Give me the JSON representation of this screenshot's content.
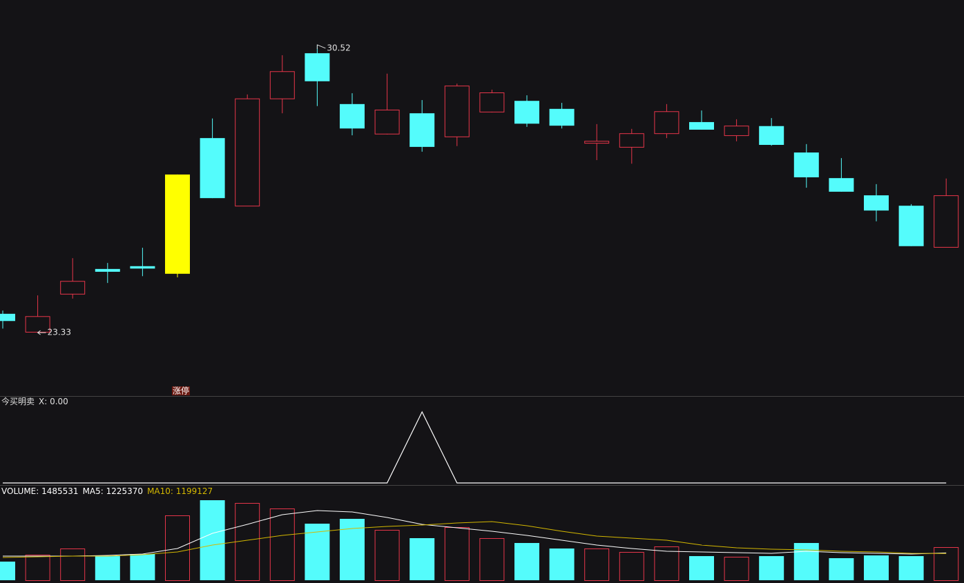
{
  "chart_data": [
    {
      "type": "candlestick",
      "open": [
        23.8,
        23.35,
        24.3,
        24.92,
        24.99,
        24.8,
        28.19,
        26.5,
        29.18,
        30.31,
        29.04,
        28.3,
        28.81,
        28.23,
        28.85,
        29.12,
        28.92,
        28.07,
        27.97,
        28.31,
        28.59,
        28.26,
        28.49,
        27.83,
        27.19,
        26.76,
        26.5,
        25.47
      ],
      "high": [
        23.88,
        24.26,
        25.19,
        25.07,
        25.45,
        27.28,
        28.68,
        29.28,
        30.26,
        30.52,
        29.31,
        29.8,
        29.14,
        29.55,
        29.4,
        29.26,
        29.07,
        28.54,
        28.42,
        29.04,
        28.88,
        28.66,
        28.69,
        28.04,
        27.69,
        27.04,
        26.54,
        27.18
      ],
      "low": [
        23.43,
        23.33,
        24.18,
        24.57,
        24.74,
        24.71,
        26.69,
        26.5,
        28.81,
        28.99,
        28.26,
        28.28,
        27.85,
        27.99,
        28.83,
        28.47,
        28.43,
        27.64,
        27.55,
        28.19,
        28.4,
        28.11,
        28.0,
        26.95,
        26.85,
        26.11,
        25.49,
        25.47
      ],
      "close": [
        23.62,
        23.74,
        24.62,
        24.85,
        24.93,
        27.28,
        26.69,
        29.18,
        29.86,
        29.61,
        28.43,
        28.9,
        27.97,
        29.5,
        29.33,
        28.55,
        28.5,
        28.12,
        28.31,
        28.86,
        28.4,
        28.5,
        28.02,
        27.21,
        26.85,
        26.38,
        25.49,
        26.76
      ],
      "up_color": "#e8364a",
      "down_color": "#54fcfc",
      "highlight": {
        "index": 5,
        "color": "#ffff00",
        "label": "涨停"
      },
      "annotations": [
        30.52,
        23.33
      ],
      "ylim": [
        21.78,
        31.64
      ]
    },
    {
      "type": "line",
      "title": "今买明卖",
      "legend": "X: 0.00",
      "color": "#ffffff",
      "values": [
        0,
        0,
        0,
        0,
        0,
        0,
        0,
        0,
        0,
        0,
        0,
        0,
        1,
        0,
        0,
        0,
        0,
        0,
        0,
        0,
        0,
        0,
        0,
        0,
        0,
        0,
        0,
        0
      ],
      "ylim": [
        0,
        1
      ]
    },
    {
      "type": "bar",
      "values": [
        836000,
        1145000,
        1424000,
        1083000,
        1176000,
        2909000,
        3590000,
        3466000,
        3219000,
        2538000,
        2754000,
        2259000,
        1888000,
        2383000,
        1888000,
        1671000,
        1424000,
        1424000,
        1269000,
        1516000,
        1083000,
        1052000,
        1083000,
        1671000,
        990000,
        1114000,
        1083000,
        1485531
      ],
      "legend": [
        {
          "text": "VOLUME: 1485531",
          "color": "#ffffff"
        },
        {
          "text": "MA5: 1225370",
          "color": "#ffffff"
        },
        {
          "text": "MA10: 1199127",
          "color": "#d4b800"
        }
      ],
      "lines": [
        {
          "color": "#ffffff",
          "values": [
            1083000,
            1083000,
            1083000,
            1114000,
            1176000,
            1424000,
            2104000,
            2507000,
            2940000,
            3126000,
            3064000,
            2816000,
            2507000,
            2352000,
            2197000,
            2012000,
            1795000,
            1578000,
            1424000,
            1300000,
            1269000,
            1238000,
            1207000,
            1300000,
            1238000,
            1207000,
            1176000,
            1225370
          ]
        },
        {
          "color": "#d4b800",
          "values": [
            1021000,
            1052000,
            1083000,
            1083000,
            1145000,
            1269000,
            1578000,
            1795000,
            2012000,
            2166000,
            2321000,
            2414000,
            2476000,
            2569000,
            2631000,
            2445000,
            2197000,
            1981000,
            1888000,
            1795000,
            1578000,
            1455000,
            1393000,
            1362000,
            1300000,
            1269000,
            1207000,
            1199127
          ]
        }
      ],
      "ylim": [
        0,
        4240000
      ]
    }
  ]
}
